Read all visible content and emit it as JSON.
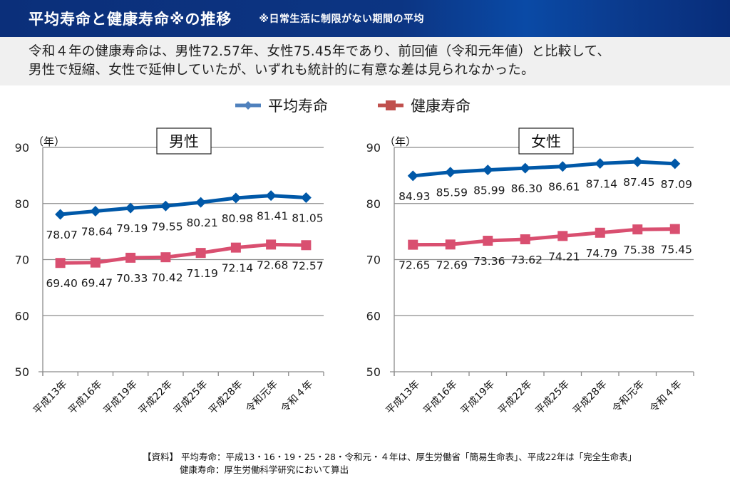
{
  "header": {
    "title": "平均寿命と健康寿命※の推移",
    "note": "※日常生活に制限がない期間の平均"
  },
  "summary": {
    "line1": "令和４年の健康寿命は、男性72.57年、女性75.45年であり、前回値（令和元年値）と比較して、",
    "line2": "男性で短縮、女性で延伸していたが、いずれも統計的に有意な差は見られなかった。"
  },
  "legend": {
    "items": [
      {
        "label": "平均寿命",
        "color": "#4f81bd",
        "marker": "diamond"
      },
      {
        "label": "健康寿命",
        "color": "#c0504d",
        "marker": "square"
      }
    ]
  },
  "chart_data": [
    {
      "type": "line",
      "title": "男性",
      "ylabel": "（年）",
      "xlabel": "",
      "ylim": [
        50,
        90
      ],
      "yticks": [
        50,
        60,
        70,
        80,
        90
      ],
      "grid": true,
      "categories": [
        "平成13年",
        "平成16年",
        "平成19年",
        "平成22年",
        "平成25年",
        "平成28年",
        "令和元年",
        "令和４年"
      ],
      "series": [
        {
          "name": "平均寿命",
          "color": "#0058a8",
          "marker": "diamond",
          "values": [
            78.07,
            78.64,
            79.19,
            79.55,
            80.21,
            80.98,
            81.41,
            81.05
          ],
          "labels": [
            "78.07",
            "78.64",
            "79.19",
            "79.55",
            "80.21",
            "80.98",
            "81.41",
            "81.05"
          ]
        },
        {
          "name": "健康寿命",
          "color": "#d94f70",
          "marker": "square",
          "values": [
            69.4,
            69.47,
            70.33,
            70.42,
            71.19,
            72.14,
            72.68,
            72.57
          ],
          "labels": [
            "69.40",
            "69.47",
            "70.33",
            "70.42",
            "71.19",
            "72.14",
            "72.68",
            "72.57"
          ]
        }
      ]
    },
    {
      "type": "line",
      "title": "女性",
      "ylabel": "（年）",
      "xlabel": "",
      "ylim": [
        50,
        90
      ],
      "yticks": [
        50,
        60,
        70,
        80,
        90
      ],
      "grid": true,
      "categories": [
        "平成13年",
        "平成16年",
        "平成19年",
        "平成22年",
        "平成25年",
        "平成28年",
        "令和元年",
        "令和４年"
      ],
      "series": [
        {
          "name": "平均寿命",
          "color": "#0058a8",
          "marker": "diamond",
          "values": [
            84.93,
            85.59,
            85.99,
            86.3,
            86.61,
            87.14,
            87.45,
            87.09
          ],
          "labels": [
            "84.93",
            "85.59",
            "85.99",
            "86.30",
            "86.61",
            "87.14",
            "87.45",
            "87.09"
          ]
        },
        {
          "name": "健康寿命",
          "color": "#d94f70",
          "marker": "square",
          "values": [
            72.65,
            72.69,
            73.36,
            73.62,
            74.21,
            74.79,
            75.38,
            75.45
          ],
          "labels": [
            "72.65",
            "72.69",
            "73.36",
            "73.62",
            "74.21",
            "74.79",
            "75.38",
            "75.45"
          ]
        }
      ]
    }
  ],
  "footer": {
    "line1": "【資料】 平均寿命：平成13・16・19・25・28・令和元・４年は、厚生労働省「簡易生命表」、平成22年は「完全生命表」",
    "line2": "健康寿命：厚生労働科学研究において算出"
  }
}
